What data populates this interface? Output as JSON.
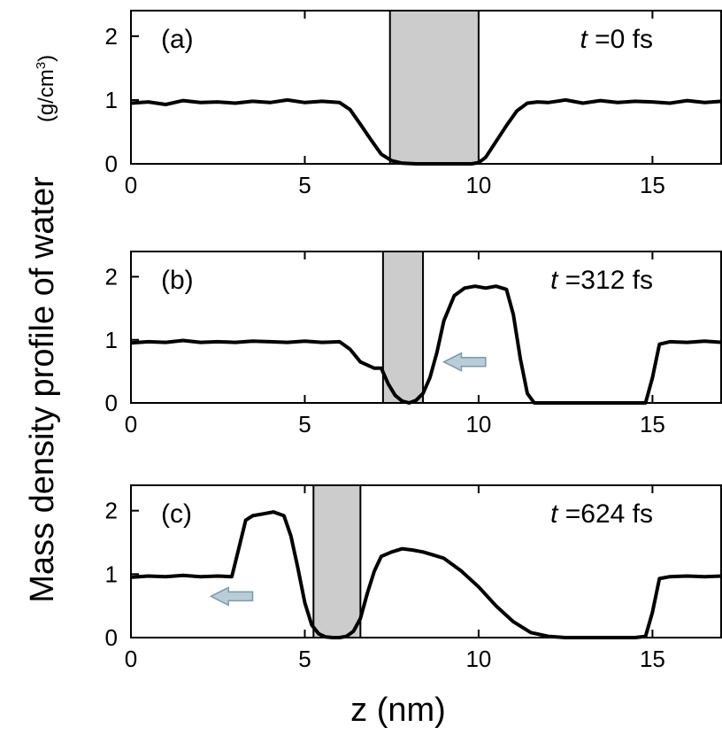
{
  "figure": {
    "ylabel_main": "Mass density profile of water",
    "ylabel_unit": "(g/cm",
    "ylabel_unit_sup": "3",
    "ylabel_unit_close": ")",
    "xlabel": "z (nm)",
    "colors": {
      "line": "#000000",
      "slab_fill": "#cccccc",
      "arrow_fill": "#b8cdd8",
      "arrow_stroke": "#7f98a8"
    }
  },
  "chart_data": [
    {
      "type": "line",
      "panel_label": "(a)",
      "time_prefix": "t",
      "time_value": " =0 fs",
      "xlim": [
        0,
        17
      ],
      "ylim": [
        0,
        2.4
      ],
      "xticks": [
        0,
        5,
        10,
        15
      ],
      "yticks": [
        0,
        1,
        2
      ],
      "slab": [
        7.45,
        10.0
      ],
      "arrow": null,
      "series": [
        {
          "x": [
            0,
            0.5,
            1,
            1.5,
            2,
            2.5,
            3,
            3.5,
            4,
            4.5,
            5,
            5.5,
            6,
            6.3,
            6.6,
            6.9,
            7.2,
            7.5,
            7.8,
            8.2,
            8.6,
            9.0,
            9.4,
            9.8,
            10.0,
            10.2,
            10.5,
            10.8,
            11.1,
            11.4,
            11.7,
            12,
            12.5,
            13,
            13.5,
            14,
            14.5,
            15,
            15.5,
            16,
            16.5,
            17
          ],
          "y": [
            0.95,
            0.97,
            0.93,
            0.99,
            0.96,
            0.97,
            0.95,
            0.98,
            0.96,
            1.0,
            0.96,
            0.98,
            0.96,
            0.85,
            0.62,
            0.38,
            0.15,
            0.05,
            0.01,
            0.0,
            0.0,
            0.0,
            0.0,
            0.0,
            0.02,
            0.1,
            0.35,
            0.6,
            0.83,
            0.95,
            0.97,
            0.96,
            1.0,
            0.95,
            0.99,
            0.96,
            0.98,
            0.97,
            0.95,
            0.99,
            0.96,
            0.98
          ]
        }
      ]
    },
    {
      "type": "line",
      "panel_label": "(b)",
      "time_prefix": "t",
      "time_value": " =312 fs",
      "xlim": [
        0,
        17
      ],
      "ylim": [
        0,
        2.4
      ],
      "xticks": [
        0,
        5,
        10,
        15
      ],
      "yticks": [
        0,
        1,
        2
      ],
      "slab": [
        7.25,
        8.4
      ],
      "arrow": {
        "x_tail": 10.2,
        "x_head": 9.0,
        "y": 0.65
      },
      "series": [
        {
          "x": [
            0,
            0.5,
            1,
            1.5,
            2,
            2.5,
            3,
            3.5,
            4,
            4.5,
            5,
            5.5,
            6,
            6.3,
            6.6,
            7.0,
            7.2,
            7.4,
            7.6,
            7.8,
            8.0,
            8.2,
            8.4,
            8.6,
            8.8,
            9.0,
            9.3,
            9.6,
            9.9,
            10.2,
            10.5,
            10.8,
            11.0,
            11.2,
            11.4,
            11.6,
            12,
            13,
            14,
            14.8,
            15.0,
            15.2,
            15.5,
            16,
            16.5,
            17
          ],
          "y": [
            0.95,
            0.97,
            0.96,
            0.99,
            0.96,
            0.97,
            0.96,
            0.98,
            0.97,
            0.96,
            0.98,
            0.96,
            0.97,
            0.85,
            0.65,
            0.55,
            0.55,
            0.3,
            0.12,
            0.03,
            0.0,
            0.04,
            0.15,
            0.4,
            0.8,
            1.3,
            1.7,
            1.82,
            1.85,
            1.82,
            1.85,
            1.8,
            1.4,
            0.7,
            0.15,
            0.0,
            0.0,
            0.0,
            0.0,
            0.0,
            0.4,
            0.93,
            0.97,
            0.96,
            0.98,
            0.96
          ]
        }
      ]
    },
    {
      "type": "line",
      "panel_label": "(c)",
      "time_prefix": "t",
      "time_value": " =624 fs",
      "xlim": [
        0,
        17
      ],
      "ylim": [
        0,
        2.4
      ],
      "xticks": [
        0,
        5,
        10,
        15
      ],
      "yticks": [
        0,
        1,
        2
      ],
      "slab": [
        5.25,
        6.6
      ],
      "arrow": {
        "x_tail": 3.5,
        "x_head": 2.3,
        "y": 0.65
      },
      "series": [
        {
          "x": [
            0,
            0.5,
            1,
            1.5,
            2,
            2.5,
            2.9,
            3.1,
            3.3,
            3.5,
            3.8,
            4.1,
            4.4,
            4.6,
            4.8,
            5.0,
            5.2,
            5.4,
            5.6,
            5.8,
            6.0,
            6.2,
            6.4,
            6.6,
            6.8,
            7.0,
            7.2,
            7.5,
            7.8,
            8.1,
            8.4,
            8.7,
            9.0,
            9.5,
            10,
            10.5,
            11,
            11.5,
            12,
            12.5,
            13,
            13.5,
            14,
            14.5,
            14.8,
            15.0,
            15.2,
            15.5,
            16,
            16.5,
            17
          ],
          "y": [
            0.95,
            0.97,
            0.96,
            0.98,
            0.96,
            0.97,
            0.96,
            1.4,
            1.85,
            1.92,
            1.95,
            1.98,
            1.92,
            1.6,
            1.1,
            0.55,
            0.2,
            0.06,
            0.01,
            0.0,
            0.0,
            0.02,
            0.1,
            0.3,
            0.7,
            1.05,
            1.28,
            1.35,
            1.4,
            1.38,
            1.35,
            1.3,
            1.25,
            1.05,
            0.8,
            0.5,
            0.25,
            0.08,
            0.02,
            0.0,
            0.0,
            0.0,
            0.0,
            0.0,
            0.02,
            0.4,
            0.93,
            0.96,
            0.97,
            0.96,
            0.97
          ]
        }
      ]
    }
  ]
}
